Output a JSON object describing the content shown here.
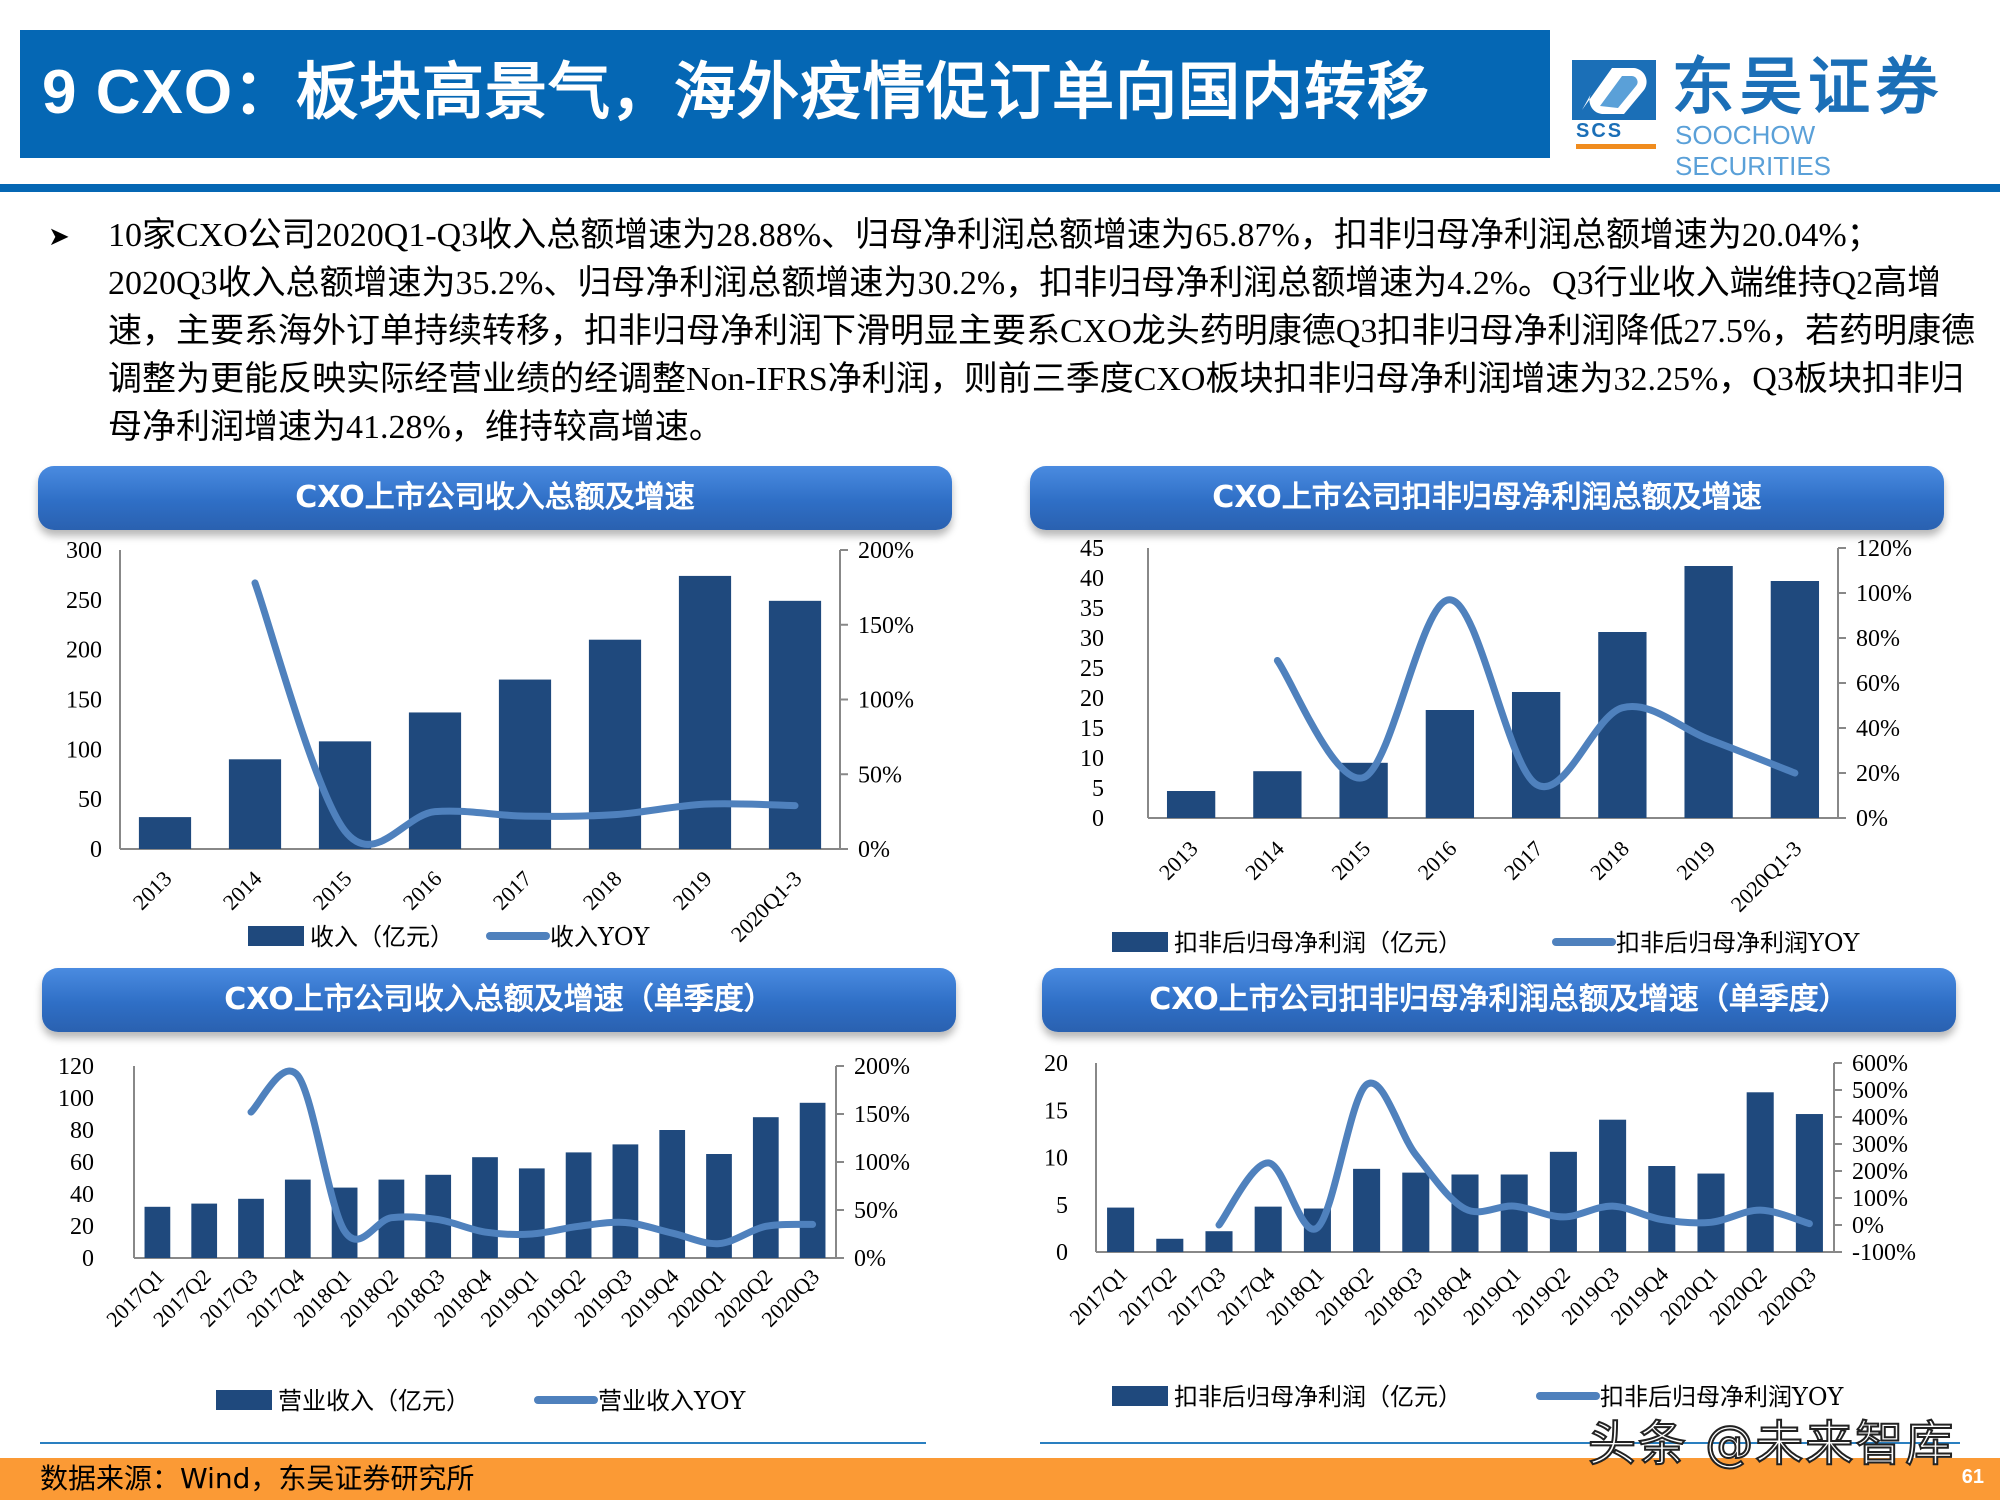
{
  "header": {
    "title": "9 CXO：板块高景气，海外疫情促订单向国内转移",
    "logo": {
      "cn": "东吴证券",
      "en": "SOOCHOW SECURITIES",
      "abbr": "SCS",
      "icon": "soochow-logo-icon"
    }
  },
  "summary": {
    "bullet_icon": "arrow-bullet-icon",
    "text": "10家CXO公司2020Q1-Q3收入总额增速为28.88%、归母净利润总额增速为65.87%，扣非归母净利润总额增速为20.04%；2020Q3收入总额增速为35.2%、归母净利润总额增速为30.2%，扣非归母净利润总额增速为4.2%。Q3行业收入端维持Q2高增速，主要系海外订单持续转移，扣非归母净利润下滑明显主要系CXO龙头药明康德Q3扣非归母净利润降低27.5%，若药明康德调整为更能反映实际经营业绩的经调整Non-IFRS净利润，则前三季度CXO板块扣非归母净利润增速为32.25%，Q3板块扣非归母净利润增速为41.28%，维持较高增速。"
  },
  "panels": [
    {
      "title": "CXO上市公司收入总额及增速"
    },
    {
      "title": "CXO上市公司扣非归母净利润总额及增速"
    },
    {
      "title": "CXO上市公司收入总额及增速（单季度）"
    },
    {
      "title": "CXO上市公司扣非归母净利润总额及增速（单季度）"
    }
  ],
  "colors": {
    "bar": "#1f497d",
    "line": "#4f81bd",
    "title_blue": "#0567b4",
    "footer_orange": "#fb9a35"
  },
  "chart_data": [
    {
      "type": "bar+line",
      "title": "CXO上市公司收入总额及增速",
      "categories": [
        "2013",
        "2014",
        "2015",
        "2016",
        "2017",
        "2018",
        "2019",
        "2020Q1-3"
      ],
      "series": [
        {
          "name": "收入（亿元）",
          "type": "bar",
          "axis": "left",
          "values": [
            32,
            90,
            108,
            137,
            170,
            210,
            274,
            249
          ]
        },
        {
          "name": "收入YOY",
          "type": "line",
          "axis": "right",
          "values": [
            null,
            1.78,
            0.12,
            0.25,
            0.22,
            0.23,
            0.3,
            0.29
          ]
        }
      ],
      "left_axis": {
        "min": 0,
        "max": 300,
        "ticks": [
          "0",
          "50",
          "100",
          "150",
          "200",
          "250",
          "300"
        ]
      },
      "right_axis": {
        "min": 0,
        "max": 2,
        "ticks": [
          "0%",
          "50%",
          "100%",
          "150%",
          "200%"
        ]
      },
      "legend": [
        "收入（亿元）",
        "收入YOY"
      ],
      "legend_position": "bottom",
      "grid": false
    },
    {
      "type": "bar+line",
      "title": "CXO上市公司扣非归母净利润总额及增速",
      "categories": [
        "2013",
        "2014",
        "2015",
        "2016",
        "2017",
        "2018",
        "2019",
        "2020Q1-3"
      ],
      "series": [
        {
          "name": "扣非后归母净利润（亿元）",
          "type": "bar",
          "axis": "left",
          "values": [
            4.5,
            7.8,
            9.2,
            18.0,
            21.0,
            31.0,
            42.0,
            39.5
          ]
        },
        {
          "name": "扣非后归母净利润YOY",
          "type": "line",
          "axis": "right",
          "values": [
            null,
            0.7,
            0.18,
            0.97,
            0.15,
            0.49,
            0.35,
            0.2
          ]
        }
      ],
      "left_axis": {
        "min": 0,
        "max": 45,
        "ticks": [
          "0",
          "5",
          "10",
          "15",
          "20",
          "25",
          "30",
          "35",
          "40",
          "45"
        ]
      },
      "right_axis": {
        "min": 0,
        "max": 1.2,
        "ticks": [
          "0%",
          "20%",
          "40%",
          "60%",
          "80%",
          "100%",
          "120%"
        ]
      },
      "legend": [
        "扣非后归母净利润（亿元）",
        "扣非后归母净利润YOY"
      ],
      "legend_position": "bottom",
      "grid": false
    },
    {
      "type": "bar+line",
      "title": "CXO上市公司收入总额及增速（单季度）",
      "categories": [
        "2017Q1",
        "2017Q2",
        "2017Q3",
        "2017Q4",
        "2018Q1",
        "2018Q2",
        "2018Q3",
        "2018Q4",
        "2019Q1",
        "2019Q2",
        "2019Q3",
        "2019Q4",
        "2020Q1",
        "2020Q2",
        "2020Q3"
      ],
      "series": [
        {
          "name": "营业收入（亿元）",
          "type": "bar",
          "axis": "left",
          "values": [
            32,
            34,
            37,
            49,
            44,
            49,
            52,
            63,
            56,
            66,
            71,
            80,
            65,
            88,
            97
          ]
        },
        {
          "name": "营业收入YOY",
          "type": "line",
          "axis": "right",
          "values": [
            null,
            null,
            1.52,
            1.9,
            0.28,
            0.42,
            0.4,
            0.27,
            0.25,
            0.33,
            0.37,
            0.26,
            0.15,
            0.33,
            0.35
          ]
        }
      ],
      "left_axis": {
        "min": 0,
        "max": 120,
        "ticks": [
          "0",
          "20",
          "40",
          "60",
          "80",
          "100",
          "120"
        ]
      },
      "right_axis": {
        "min": 0,
        "max": 2,
        "ticks": [
          "0%",
          "50%",
          "100%",
          "150%",
          "200%"
        ]
      },
      "legend": [
        "营业收入（亿元）",
        "营业收入YOY"
      ],
      "legend_position": "bottom",
      "grid": false
    },
    {
      "type": "bar+line",
      "title": "CXO上市公司扣非归母净利润总额及增速（单季度）",
      "categories": [
        "2017Q1",
        "2017Q2",
        "2017Q3",
        "2017Q4",
        "2018Q1",
        "2018Q2",
        "2018Q3",
        "2018Q4",
        "2019Q1",
        "2019Q2",
        "2019Q3",
        "2019Q4",
        "2020Q1",
        "2020Q2",
        "2020Q3"
      ],
      "series": [
        {
          "name": "扣非后归母净利润（亿元）",
          "type": "bar",
          "axis": "left",
          "values": [
            4.7,
            1.4,
            2.2,
            4.8,
            4.6,
            8.8,
            8.4,
            8.2,
            8.2,
            10.6,
            14.0,
            9.1,
            8.3,
            16.9,
            14.6
          ]
        },
        {
          "name": "扣非后归母净利润YOY",
          "type": "line",
          "axis": "right",
          "values": [
            null,
            null,
            0.0,
            2.3,
            -0.1,
            5.2,
            2.6,
            0.6,
            0.7,
            0.3,
            0.7,
            0.2,
            0.1,
            0.55,
            0.05
          ]
        }
      ],
      "left_axis": {
        "min": 0,
        "max": 20,
        "ticks": [
          "0",
          "5",
          "10",
          "15",
          "20"
        ]
      },
      "right_axis": {
        "min": -1,
        "max": 6,
        "ticks": [
          "-100%",
          "0%",
          "100%",
          "200%",
          "300%",
          "400%",
          "500%",
          "600%"
        ]
      },
      "legend": [
        "扣非后归母净利润（亿元）",
        "扣非后归母净利润YOY"
      ],
      "legend_position": "bottom",
      "grid": false
    }
  ],
  "footer": {
    "source": "数据来源：Wind，东吴证券研究所",
    "page_number": "61",
    "watermark": "头条 @未来智库"
  }
}
